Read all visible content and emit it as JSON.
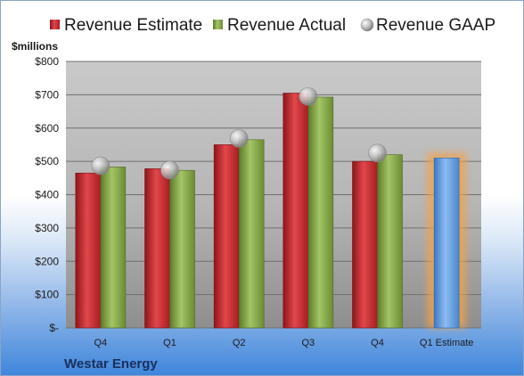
{
  "company": "Westar Energy",
  "colors": {
    "estimate": "#c0252a",
    "actual": "#7fa043",
    "gaap": "#b9b9b9",
    "forecast": "#5b9ae0",
    "forecast_glow": "#f2a24a"
  },
  "chart_data": {
    "type": "bar",
    "unit_label": "$millions",
    "categories": [
      "Q4",
      "Q1",
      "Q2",
      "Q3",
      "Q4",
      "Q1 Estimate"
    ],
    "ylim": [
      0,
      800
    ],
    "yticks": [
      0,
      100,
      200,
      300,
      400,
      500,
      600,
      700,
      800
    ],
    "ytick_labels": [
      "$-",
      "$100",
      "$200",
      "$300",
      "$400",
      "$500",
      "$600",
      "$700",
      "$800"
    ],
    "grid": true,
    "legend_position": "top",
    "series": [
      {
        "name": "Revenue Estimate",
        "type": "bar",
        "values": [
          465,
          478,
          550,
          705,
          500,
          null
        ]
      },
      {
        "name": "Revenue Actual",
        "type": "bar",
        "values": [
          483,
          473,
          565,
          693,
          520,
          null
        ]
      },
      {
        "name": "Revenue GAAP",
        "type": "scatter",
        "values": [
          487,
          474,
          569,
          695,
          525,
          null
        ]
      }
    ],
    "forecast": {
      "category": "Q1 Estimate",
      "value": 510
    }
  }
}
